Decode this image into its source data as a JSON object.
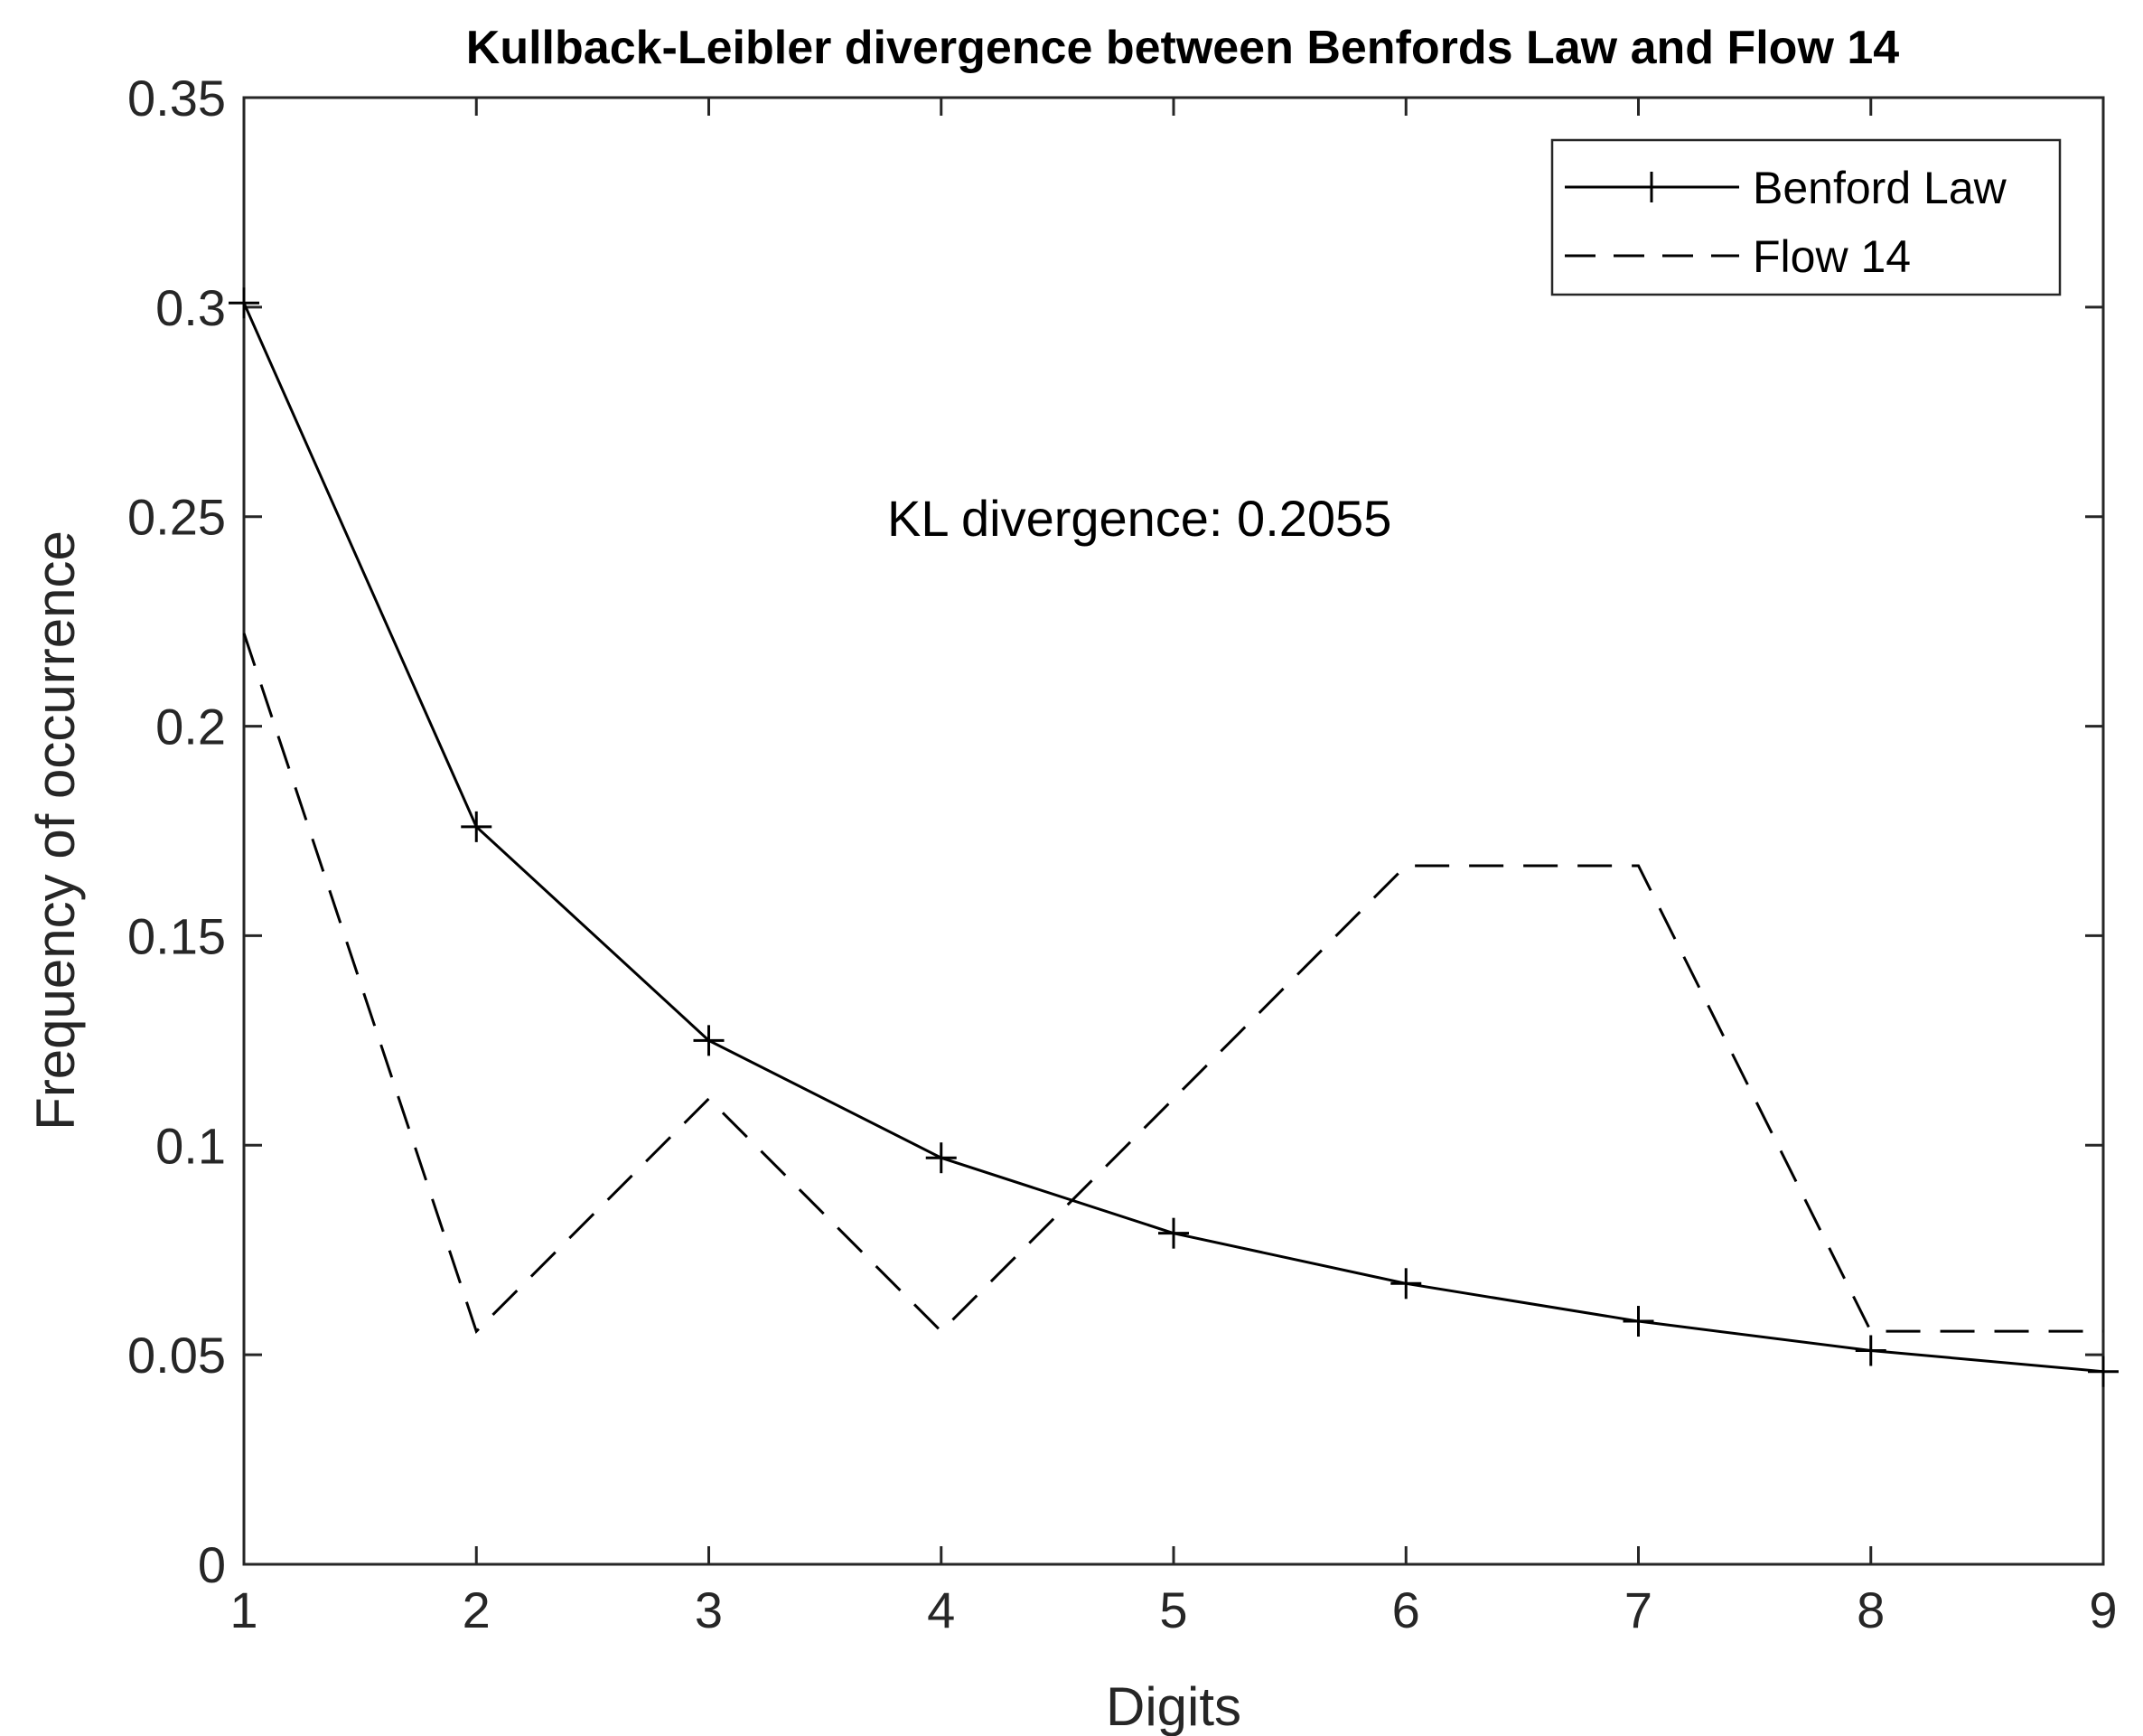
{
  "chart_data": {
    "type": "line",
    "title": "Kullback-Leibler divergence between Benfords Law and Flow 14",
    "xlabel": "Digits",
    "ylabel": "Frequency of occurrence",
    "x": [
      1,
      2,
      3,
      4,
      5,
      6,
      7,
      8,
      9
    ],
    "xlim": [
      1,
      9
    ],
    "ylim": [
      0,
      0.35
    ],
    "xticks": [
      "1",
      "2",
      "3",
      "4",
      "5",
      "6",
      "7",
      "8",
      "9"
    ],
    "yticks": [
      "0",
      "0.05",
      "0.1",
      "0.15",
      "0.2",
      "0.25",
      "0.3",
      "0.35"
    ],
    "ytick_values": [
      0,
      0.05,
      0.1,
      0.15,
      0.2,
      0.25,
      0.3,
      0.35
    ],
    "grid": false,
    "legend_position": "top-right",
    "series": [
      {
        "name": "Benford Law",
        "values": [
          0.301,
          0.176,
          0.125,
          0.097,
          0.079,
          0.067,
          0.058,
          0.051,
          0.046
        ],
        "line_style": "solid",
        "marker": "plus",
        "color": "#000000"
      },
      {
        "name": "Flow 14",
        "values": [
          0.2222,
          0.0556,
          0.1111,
          0.0556,
          0.1111,
          0.1667,
          0.1667,
          0.0556,
          0.0556
        ],
        "line_style": "dashed",
        "marker": "none",
        "color": "#000000"
      }
    ],
    "annotation": "KL divergence: 0.2055"
  }
}
